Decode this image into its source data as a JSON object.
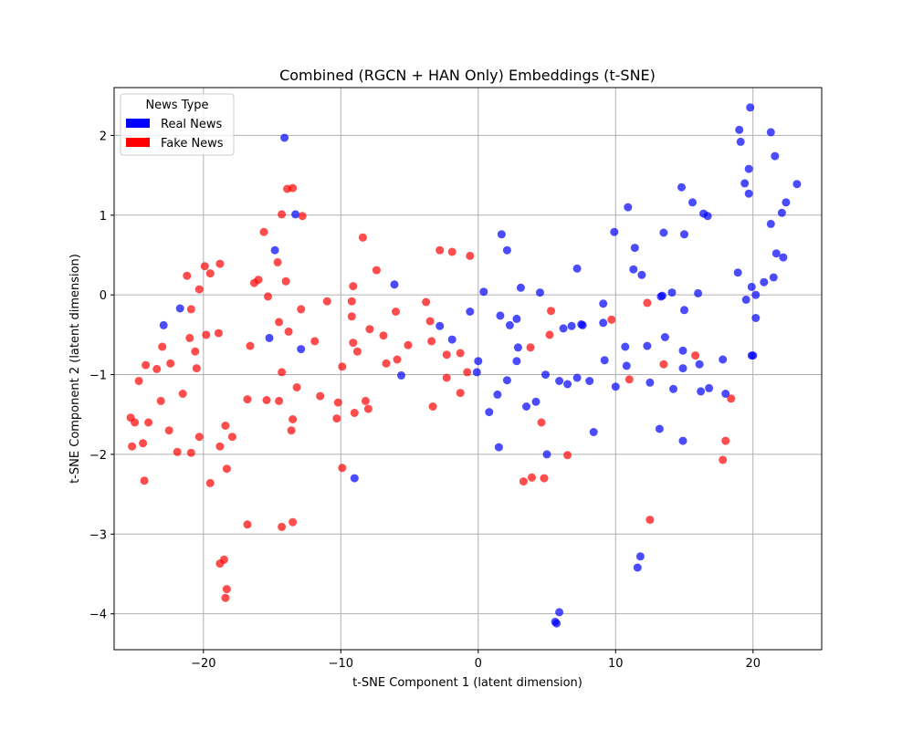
{
  "chart_data": {
    "type": "scatter",
    "title": "Combined (RGCN + HAN Only) Embeddings (t-SNE)",
    "xlabel": "t-SNE Component 1 (latent dimension)",
    "ylabel": "t-SNE Component 2 (latent dimension)",
    "xlim": [
      -26.5,
      25
    ],
    "ylim": [
      -4.45,
      2.6
    ],
    "x_ticks": [
      -20,
      -10,
      0,
      10,
      20
    ],
    "x_tick_labels": [
      "−20",
      "−10",
      "0",
      "10",
      "20"
    ],
    "y_ticks": [
      -4,
      -3,
      -2,
      -1,
      0,
      1,
      2
    ],
    "y_tick_labels": [
      "−4",
      "−3",
      "−2",
      "−1",
      "0",
      "1",
      "2"
    ],
    "grid": true,
    "legend": {
      "title": "News Type",
      "placement": "top-left",
      "entries": [
        "Real News",
        "Fake News"
      ]
    },
    "series": [
      {
        "name": "Real News",
        "color": "#0000ff",
        "points": [
          [
            -14.1,
            1.97
          ],
          [
            -13.3,
            1.01
          ],
          [
            -14.8,
            0.56
          ],
          [
            -21.7,
            -0.17
          ],
          [
            -22.9,
            -0.38
          ],
          [
            -15.2,
            -0.54
          ],
          [
            -12.9,
            -0.68
          ],
          [
            -9.0,
            -2.3
          ],
          [
            -6.1,
            0.13
          ],
          [
            -5.6,
            -1.01
          ],
          [
            -2.8,
            -0.39
          ],
          [
            -1.9,
            -0.56
          ],
          [
            -0.6,
            -0.21
          ],
          [
            0.0,
            -0.83
          ],
          [
            -0.1,
            -0.97
          ],
          [
            0.4,
            0.04
          ],
          [
            0.8,
            -1.47
          ],
          [
            1.4,
            -1.25
          ],
          [
            1.7,
            0.76
          ],
          [
            1.6,
            -0.26
          ],
          [
            2.1,
            0.56
          ],
          [
            2.1,
            -1.07
          ],
          [
            2.3,
            -0.38
          ],
          [
            2.8,
            -0.3
          ],
          [
            2.8,
            -0.83
          ],
          [
            2.9,
            -0.66
          ],
          [
            3.1,
            0.09
          ],
          [
            3.5,
            -1.4
          ],
          [
            1.5,
            -1.91
          ],
          [
            4.2,
            -1.34
          ],
          [
            4.5,
            0.03
          ],
          [
            4.9,
            -1.0
          ],
          [
            5.0,
            -2.0
          ],
          [
            5.6,
            -4.1
          ],
          [
            5.7,
            -4.12
          ],
          [
            5.9,
            -3.98
          ],
          [
            5.9,
            -1.08
          ],
          [
            6.2,
            -0.42
          ],
          [
            6.5,
            -1.12
          ],
          [
            6.8,
            -0.39
          ],
          [
            7.2,
            -1.04
          ],
          [
            7.2,
            0.33
          ],
          [
            7.6,
            -0.38
          ],
          [
            7.5,
            -0.37
          ],
          [
            8.1,
            -1.08
          ],
          [
            8.4,
            -1.72
          ],
          [
            9.1,
            -0.11
          ],
          [
            9.1,
            -0.35
          ],
          [
            9.2,
            -0.82
          ],
          [
            9.9,
            0.79
          ],
          [
            10.0,
            -1.15
          ],
          [
            10.7,
            -0.65
          ],
          [
            10.8,
            -0.89
          ],
          [
            10.9,
            1.1
          ],
          [
            11.3,
            0.32
          ],
          [
            11.4,
            0.59
          ],
          [
            11.6,
            -3.42
          ],
          [
            11.8,
            -3.28
          ],
          [
            11.9,
            0.25
          ],
          [
            12.3,
            -0.64
          ],
          [
            12.5,
            -1.1
          ],
          [
            13.2,
            -1.68
          ],
          [
            13.3,
            -0.02
          ],
          [
            13.4,
            -0.01
          ],
          [
            13.5,
            0.78
          ],
          [
            13.6,
            -0.53
          ],
          [
            14.1,
            0.03
          ],
          [
            14.2,
            -1.18
          ],
          [
            14.8,
            1.35
          ],
          [
            14.9,
            -0.92
          ],
          [
            14.9,
            -0.7
          ],
          [
            14.9,
            -1.83
          ],
          [
            15.0,
            0.76
          ],
          [
            15.0,
            -0.19
          ],
          [
            15.6,
            1.16
          ],
          [
            16.0,
            0.02
          ],
          [
            16.1,
            -0.87
          ],
          [
            16.2,
            -1.21
          ],
          [
            16.4,
            1.02
          ],
          [
            16.7,
            0.99
          ],
          [
            16.8,
            -1.17
          ],
          [
            17.8,
            -0.81
          ],
          [
            18.0,
            -1.24
          ],
          [
            18.9,
            0.28
          ],
          [
            19.0,
            2.07
          ],
          [
            19.1,
            1.92
          ],
          [
            19.4,
            1.4
          ],
          [
            19.5,
            -0.06
          ],
          [
            19.7,
            1.58
          ],
          [
            19.7,
            1.27
          ],
          [
            19.8,
            2.35
          ],
          [
            19.9,
            0.1
          ],
          [
            19.9,
            -0.76
          ],
          [
            20.0,
            -0.76
          ],
          [
            20.2,
            0.0
          ],
          [
            20.2,
            -0.29
          ],
          [
            20.8,
            0.16
          ],
          [
            21.3,
            2.04
          ],
          [
            21.3,
            0.89
          ],
          [
            21.5,
            0.22
          ],
          [
            21.6,
            1.74
          ],
          [
            21.7,
            0.52
          ],
          [
            22.1,
            1.03
          ],
          [
            22.2,
            0.47
          ],
          [
            22.4,
            1.16
          ],
          [
            23.2,
            1.39
          ]
        ]
      },
      {
        "name": "Fake News",
        "color": "#ff0000",
        "points": [
          [
            -25.3,
            -1.54
          ],
          [
            -25.2,
            -1.9
          ],
          [
            -25.0,
            -1.6
          ],
          [
            -24.7,
            -1.08
          ],
          [
            -24.4,
            -1.86
          ],
          [
            -24.3,
            -2.33
          ],
          [
            -24.2,
            -0.88
          ],
          [
            -24.0,
            -1.6
          ],
          [
            -23.4,
            -0.93
          ],
          [
            -23.1,
            -1.33
          ],
          [
            -23.0,
            -0.65
          ],
          [
            -22.5,
            -1.7
          ],
          [
            -22.4,
            -0.86
          ],
          [
            -21.9,
            -1.97
          ],
          [
            -21.5,
            -1.24
          ],
          [
            -21.2,
            0.24
          ],
          [
            -21.0,
            -0.54
          ],
          [
            -20.9,
            -0.18
          ],
          [
            -20.9,
            -1.98
          ],
          [
            -20.6,
            -0.71
          ],
          [
            -20.5,
            -0.92
          ],
          [
            -20.3,
            0.07
          ],
          [
            -20.3,
            -1.78
          ],
          [
            -19.9,
            0.36
          ],
          [
            -19.8,
            -0.5
          ],
          [
            -19.5,
            0.27
          ],
          [
            -19.5,
            -2.36
          ],
          [
            -18.9,
            -0.48
          ],
          [
            -18.8,
            -3.37
          ],
          [
            -18.8,
            -1.9
          ],
          [
            -18.8,
            0.39
          ],
          [
            -18.5,
            -3.32
          ],
          [
            -18.4,
            -3.8
          ],
          [
            -18.3,
            -3.69
          ],
          [
            -18.4,
            -1.64
          ],
          [
            -18.3,
            -2.18
          ],
          [
            -17.9,
            -1.78
          ],
          [
            -16.8,
            -2.88
          ],
          [
            -16.8,
            -1.31
          ],
          [
            -16.6,
            -0.64
          ],
          [
            -16.3,
            0.15
          ],
          [
            -16.0,
            0.19
          ],
          [
            -15.6,
            0.79
          ],
          [
            -15.4,
            -1.32
          ],
          [
            -15.3,
            -0.02
          ],
          [
            -14.6,
            0.41
          ],
          [
            -14.5,
            -1.33
          ],
          [
            -14.5,
            -0.34
          ],
          [
            -14.3,
            -0.97
          ],
          [
            -14.3,
            -2.91
          ],
          [
            -14.3,
            1.01
          ],
          [
            -14.0,
            0.17
          ],
          [
            -13.9,
            1.33
          ],
          [
            -13.8,
            -0.46
          ],
          [
            -13.6,
            -1.7
          ],
          [
            -13.5,
            1.34
          ],
          [
            -13.5,
            -1.56
          ],
          [
            -13.5,
            -2.85
          ],
          [
            -13.2,
            -1.16
          ],
          [
            -12.9,
            -0.18
          ],
          [
            -12.8,
            0.99
          ],
          [
            -11.9,
            -0.58
          ],
          [
            -11.5,
            -1.27
          ],
          [
            -11.0,
            -0.08
          ],
          [
            -10.3,
            -1.55
          ],
          [
            -10.2,
            -1.35
          ],
          [
            -9.9,
            -2.17
          ],
          [
            -9.9,
            -0.9
          ],
          [
            -9.2,
            -0.08
          ],
          [
            -9.2,
            -0.27
          ],
          [
            -9.1,
            0.11
          ],
          [
            -9.1,
            -0.6
          ],
          [
            -9.0,
            -1.48
          ],
          [
            -8.8,
            -0.71
          ],
          [
            -8.4,
            0.72
          ],
          [
            -8.2,
            -1.33
          ],
          [
            -8.0,
            -1.43
          ],
          [
            -7.9,
            -0.43
          ],
          [
            -7.4,
            0.31
          ],
          [
            -6.9,
            -0.51
          ],
          [
            -6.7,
            -0.86
          ],
          [
            -6.0,
            -0.21
          ],
          [
            -5.9,
            -0.81
          ],
          [
            -5.1,
            -0.63
          ],
          [
            -3.8,
            -0.09
          ],
          [
            -3.5,
            -0.33
          ],
          [
            -3.4,
            -0.58
          ],
          [
            -3.3,
            -1.4
          ],
          [
            -2.8,
            0.56
          ],
          [
            -2.3,
            -0.75
          ],
          [
            -2.3,
            -1.04
          ],
          [
            -1.9,
            0.54
          ],
          [
            -1.3,
            -1.23
          ],
          [
            -1.3,
            -0.73
          ],
          [
            -0.8,
            -0.97
          ],
          [
            -0.6,
            0.49
          ],
          [
            3.3,
            -2.34
          ],
          [
            3.8,
            -0.66
          ],
          [
            3.9,
            -2.29
          ],
          [
            4.6,
            -1.6
          ],
          [
            4.8,
            -2.3
          ],
          [
            5.2,
            -0.5
          ],
          [
            5.3,
            -0.2
          ],
          [
            6.5,
            -2.01
          ],
          [
            9.7,
            -0.31
          ],
          [
            11.0,
            -1.06
          ],
          [
            12.3,
            -0.1
          ],
          [
            12.5,
            -2.82
          ],
          [
            13.5,
            -0.87
          ],
          [
            15.8,
            -0.76
          ],
          [
            17.8,
            -2.07
          ],
          [
            18.0,
            -1.83
          ],
          [
            18.4,
            -1.3
          ]
        ]
      }
    ],
    "marker_alpha": 0.7
  }
}
